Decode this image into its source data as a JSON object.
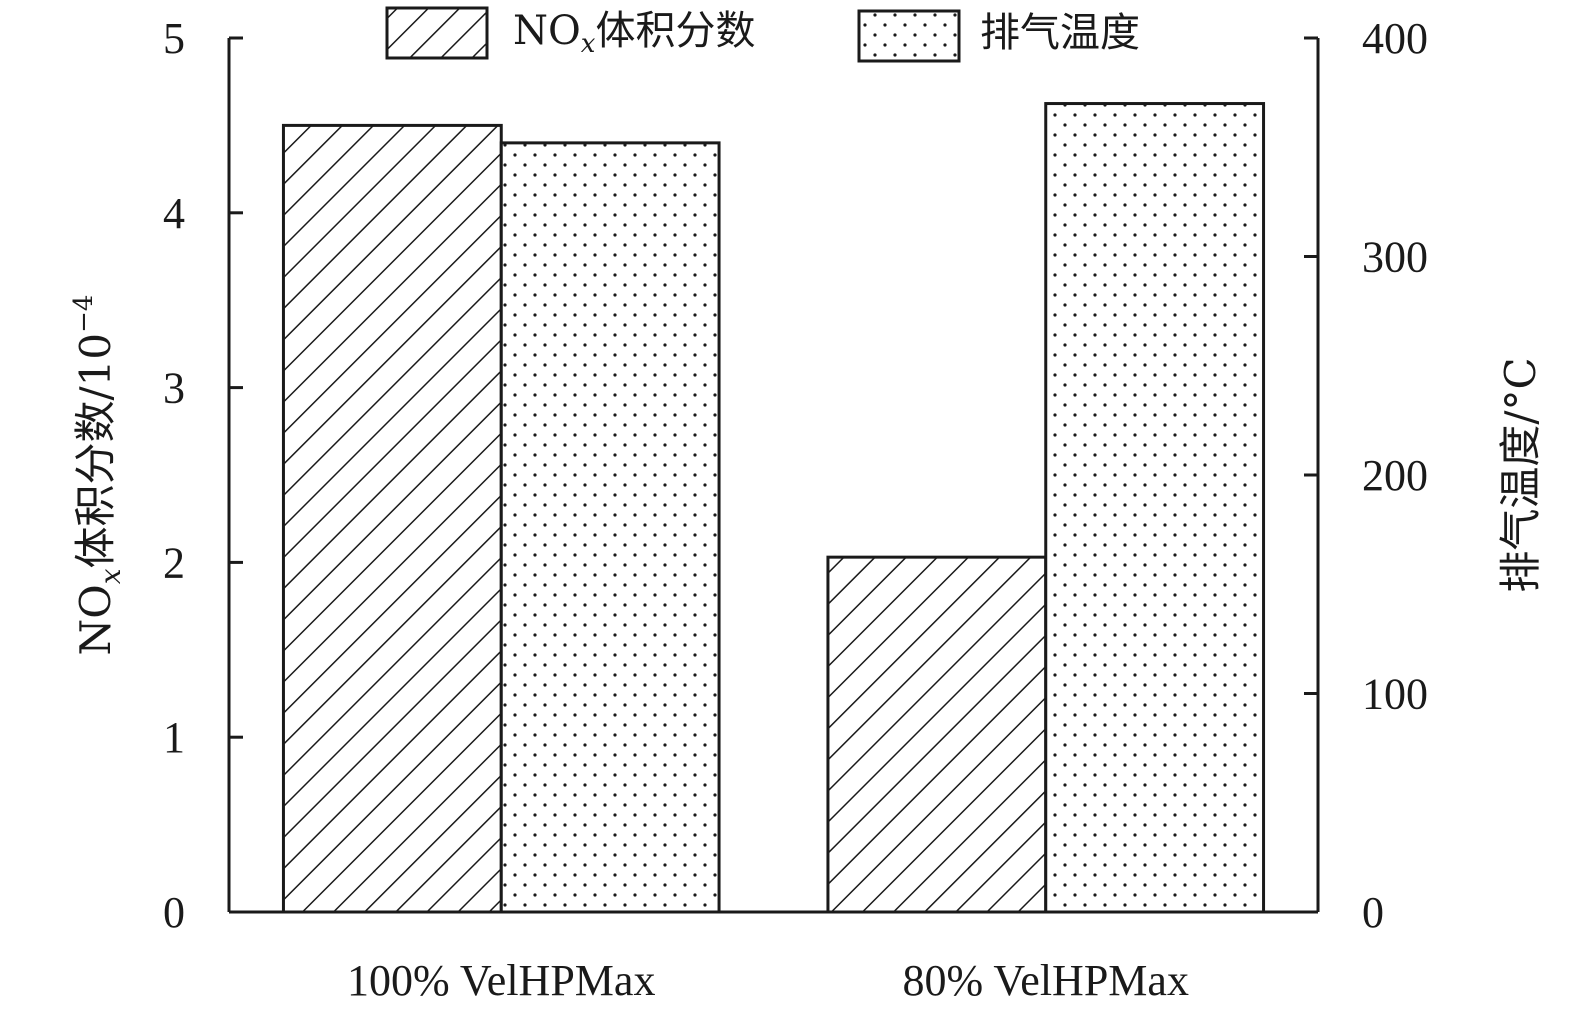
{
  "chart_data": {
    "type": "bar",
    "categories": [
      "100% VelHPMax",
      "80% VelHPMax"
    ],
    "series": [
      {
        "name": "NOx体积分数",
        "legend_prefix": "NO",
        "legend_sub": "x",
        "legend_suffix": "体积分数",
        "axis": "left",
        "pattern": "hatch",
        "values": [
          4.5,
          2.03
        ]
      },
      {
        "name": "排气温度",
        "axis": "right",
        "pattern": "dots",
        "values": [
          352,
          370
        ]
      }
    ],
    "y_left": {
      "label_prefix": "NO",
      "label_sub": "x",
      "label_main": "体积分数/10",
      "label_sup": "−4",
      "range": [
        0,
        5
      ],
      "ticks": [
        "0",
        "1",
        "2",
        "3",
        "4",
        "5"
      ]
    },
    "y_right": {
      "label": "排气温度/°C",
      "range": [
        0,
        400
      ],
      "ticks": [
        "0",
        "100",
        "200",
        "300",
        "400"
      ]
    },
    "legend_position": "top",
    "grid": false
  },
  "colors": {
    "ink": "#1a1a1a",
    "background": "#ffffff"
  }
}
